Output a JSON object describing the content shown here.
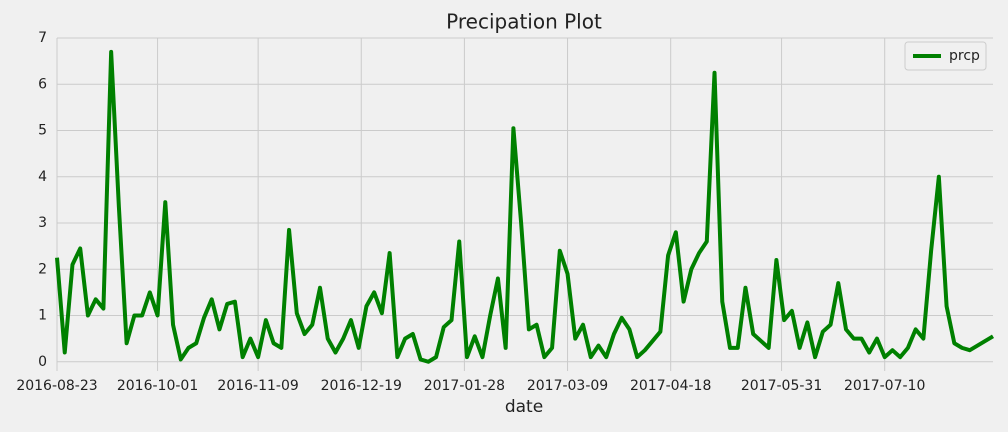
{
  "chart_data": {
    "type": "line",
    "title": "Precipation Plot",
    "x_label": "date",
    "x": [
      "2016-08-23",
      "2016-08-26",
      "2016-08-29",
      "2016-09-01",
      "2016-09-04",
      "2016-09-07",
      "2016-09-10",
      "2016-09-13",
      "2016-09-16",
      "2016-09-19",
      "2016-09-22",
      "2016-09-25",
      "2016-09-28",
      "2016-10-01",
      "2016-10-04",
      "2016-10-07",
      "2016-10-10",
      "2016-10-13",
      "2016-10-16",
      "2016-10-19",
      "2016-10-22",
      "2016-10-25",
      "2016-10-28",
      "2016-10-31",
      "2016-11-03",
      "2016-11-06",
      "2016-11-09",
      "2016-11-12",
      "2016-11-15",
      "2016-11-18",
      "2016-11-21",
      "2016-11-24",
      "2016-11-27",
      "2016-11-30",
      "2016-12-03",
      "2016-12-06",
      "2016-12-09",
      "2016-12-12",
      "2016-12-15",
      "2016-12-18",
      "2016-12-21",
      "2016-12-24",
      "2016-12-27",
      "2016-12-30",
      "2017-01-02",
      "2017-01-05",
      "2017-01-08",
      "2017-01-11",
      "2017-01-14",
      "2017-01-17",
      "2017-01-20",
      "2017-01-23",
      "2017-01-26",
      "2017-01-29",
      "2017-02-01",
      "2017-02-04",
      "2017-02-07",
      "2017-02-10",
      "2017-02-13",
      "2017-02-16",
      "2017-02-19",
      "2017-02-22",
      "2017-02-25",
      "2017-02-28",
      "2017-03-03",
      "2017-03-06",
      "2017-03-09",
      "2017-03-12",
      "2017-03-15",
      "2017-03-18",
      "2017-03-21",
      "2017-03-24",
      "2017-03-27",
      "2017-03-30",
      "2017-04-02",
      "2017-04-05",
      "2017-04-08",
      "2017-04-11",
      "2017-04-14",
      "2017-04-17",
      "2017-04-20",
      "2017-04-23",
      "2017-04-26",
      "2017-04-29",
      "2017-05-02",
      "2017-05-05",
      "2017-05-08",
      "2017-05-11",
      "2017-05-14",
      "2017-05-17",
      "2017-05-20",
      "2017-05-23",
      "2017-05-26",
      "2017-05-29",
      "2017-06-01",
      "2017-06-04",
      "2017-06-07",
      "2017-06-10",
      "2017-06-13",
      "2017-06-16",
      "2017-06-19",
      "2017-06-22",
      "2017-06-25",
      "2017-06-28",
      "2017-07-01",
      "2017-07-04",
      "2017-07-07",
      "2017-07-10",
      "2017-07-13",
      "2017-07-16",
      "2017-07-19",
      "2017-07-22",
      "2017-07-25",
      "2017-07-28",
      "2017-07-31",
      "2017-08-03",
      "2017-08-06",
      "2017-08-09",
      "2017-08-12",
      "2017-08-15",
      "2017-08-18",
      "2017-08-21"
    ],
    "series": [
      {
        "name": "prcp",
        "color": "#008000",
        "values": [
          2.25,
          0.2,
          2.1,
          2.45,
          1.0,
          1.35,
          1.15,
          6.7,
          3.35,
          0.4,
          1.0,
          1.0,
          1.5,
          1.0,
          3.45,
          0.8,
          0.05,
          0.3,
          0.4,
          0.95,
          1.35,
          0.7,
          1.25,
          1.3,
          0.1,
          0.5,
          0.1,
          0.9,
          0.4,
          0.3,
          2.85,
          1.05,
          0.6,
          0.8,
          1.6,
          0.5,
          0.2,
          0.5,
          0.9,
          0.3,
          1.2,
          1.5,
          1.05,
          2.35,
          0.1,
          0.5,
          0.6,
          0.05,
          0.0,
          0.1,
          0.75,
          0.9,
          2.6,
          0.1,
          0.55,
          0.1,
          1.0,
          1.8,
          0.3,
          5.05,
          3.0,
          0.7,
          0.8,
          0.1,
          0.3,
          2.4,
          1.9,
          0.5,
          0.8,
          0.1,
          0.35,
          0.1,
          0.6,
          0.95,
          0.7,
          0.1,
          0.25,
          0.45,
          0.65,
          2.3,
          2.8,
          1.3,
          2.0,
          2.35,
          2.6,
          6.25,
          1.3,
          0.3,
          0.3,
          1.6,
          0.6,
          0.45,
          0.3,
          2.2,
          0.9,
          1.1,
          0.3,
          0.85,
          0.1,
          0.65,
          0.8,
          1.7,
          0.7,
          0.5,
          0.5,
          0.2,
          0.5,
          0.1,
          0.25,
          0.1,
          0.3,
          0.7,
          0.5,
          2.4,
          4.0,
          1.2,
          0.4,
          0.3,
          0.25,
          0.35,
          0.45,
          0.55
        ]
      }
    ],
    "xlim": [
      "2016-08-23",
      "2017-08-21"
    ],
    "xticks": [
      "2016-08-23",
      "2016-10-01",
      "2016-11-09",
      "2016-12-19",
      "2017-01-28",
      "2017-03-09",
      "2017-04-18",
      "2017-05-31",
      "2017-07-10"
    ],
    "ylim": [
      -0.2,
      7
    ],
    "yticks": [
      0,
      1,
      2,
      3,
      4,
      5,
      6,
      7
    ],
    "grid": true,
    "legend": "upper right"
  }
}
